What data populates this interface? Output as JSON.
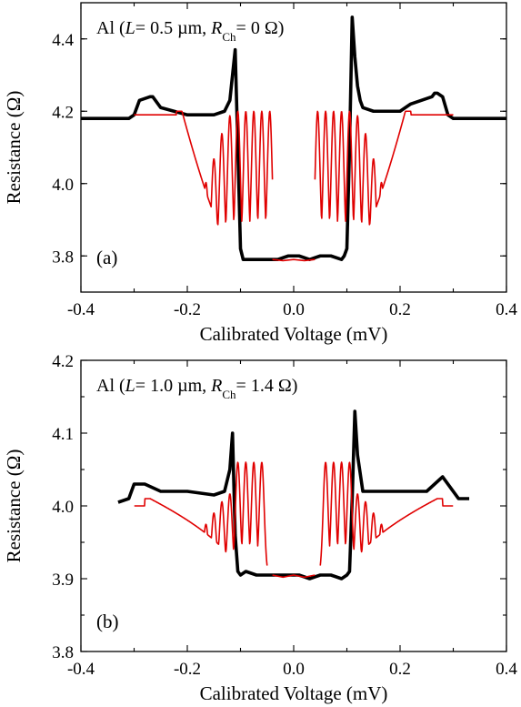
{
  "chart_data": [
    {
      "type": "line",
      "panel_label": "(a)",
      "title": {
        "material": "Al",
        "l_sym": "L",
        "l_text": "= 0.5 µm, ",
        "r_sym": "R",
        "r_sub": "Ch",
        "r_text": "= 0 Ω)"
      },
      "xlabel": "Calibrated Voltage (mV)",
      "ylabel": "Resistance (Ω)",
      "xlim": [
        -0.4,
        0.4
      ],
      "ylim": [
        3.7,
        4.5
      ],
      "xticks": [
        -0.4,
        -0.2,
        0.0,
        0.2,
        0.4
      ],
      "xtick_labels": [
        "-0.4",
        "-0.2",
        "0.0",
        "0.2",
        "0.4"
      ],
      "yticks": [
        3.8,
        4.0,
        4.2,
        4.4
      ],
      "ytick_labels": [
        "3.8",
        "4.0",
        "4.2",
        "4.4"
      ],
      "series": [
        {
          "color": "#000000",
          "x": [
            -0.4,
            -0.35,
            -0.31,
            -0.3,
            -0.29,
            -0.27,
            -0.265,
            -0.25,
            -0.2,
            -0.15,
            -0.13,
            -0.12,
            -0.115,
            -0.11,
            -0.105,
            -0.1,
            -0.095,
            -0.09,
            -0.07,
            -0.05,
            -0.03,
            -0.01,
            0.01,
            0.03,
            0.05,
            0.07,
            0.09,
            0.095,
            0.1,
            0.105,
            0.11,
            0.115,
            0.12,
            0.125,
            0.13,
            0.15,
            0.2,
            0.22,
            0.26,
            0.265,
            0.27,
            0.28,
            0.29,
            0.3,
            0.35,
            0.4
          ],
          "y": [
            4.18,
            4.18,
            4.18,
            4.19,
            4.23,
            4.24,
            4.24,
            4.21,
            4.19,
            4.19,
            4.2,
            4.23,
            4.3,
            4.37,
            4.1,
            3.82,
            3.79,
            3.79,
            3.79,
            3.79,
            3.79,
            3.8,
            3.8,
            3.79,
            3.8,
            3.8,
            3.79,
            3.8,
            3.82,
            4.1,
            4.46,
            4.35,
            4.27,
            4.23,
            4.21,
            4.2,
            4.2,
            4.22,
            4.24,
            4.25,
            4.25,
            4.24,
            4.19,
            4.18,
            4.18,
            4.18
          ]
        },
        {
          "color": "#e00000",
          "oscillation": {
            "amplitude": 0.41,
            "upper": 4.2,
            "baseline": 3.79,
            "peaks": [
              0.045,
              0.06,
              0.075,
              0.09,
              0.105,
              0.12,
              0.135,
              0.15,
              0.165,
              0.18,
              0.195,
              0.21
            ],
            "width": 0.0045,
            "amp_scale": [
              1.0,
              1.0,
              1.0,
              1.0,
              1.0,
              0.97,
              0.85,
              0.68,
              0.52,
              0.38,
              0.26,
              0.14
            ],
            "x_range": [
              0.04,
              0.3
            ],
            "zero_gap": [
              -0.04,
              0.04
            ],
            "zero_level": 3.79
          },
          "x": [],
          "y": []
        }
      ]
    },
    {
      "type": "line",
      "panel_label": "(b)",
      "title": {
        "material": "Al",
        "l_sym": "L",
        "l_text": "= 1.0 µm, ",
        "r_sym": "R",
        "r_sub": "Ch",
        "r_text": "= 1.4 Ω)"
      },
      "xlabel": "Calibrated Voltage (mV)",
      "ylabel": "Resistance (Ω)",
      "xlim": [
        -0.4,
        0.4
      ],
      "ylim": [
        3.8,
        4.2
      ],
      "xticks": [
        -0.4,
        -0.2,
        0.0,
        0.2,
        0.4
      ],
      "xtick_labels": [
        "-0.4",
        "-0.2",
        "0.0",
        "0.2",
        "0.4"
      ],
      "yticks": [
        3.8,
        3.9,
        4.0,
        4.1,
        4.2
      ],
      "ytick_labels": [
        "3.8",
        "3.9",
        "4.0",
        "4.1",
        "4.2"
      ],
      "series": [
        {
          "color": "#000000",
          "x": [
            -0.33,
            -0.31,
            -0.3,
            -0.28,
            -0.25,
            -0.2,
            -0.15,
            -0.13,
            -0.12,
            -0.115,
            -0.11,
            -0.105,
            -0.1,
            -0.09,
            -0.07,
            -0.05,
            -0.03,
            -0.01,
            0.01,
            0.03,
            0.05,
            0.07,
            0.09,
            0.1,
            0.105,
            0.11,
            0.115,
            0.12,
            0.13,
            0.15,
            0.2,
            0.25,
            0.28,
            0.3,
            0.31,
            0.33
          ],
          "y": [
            4.005,
            4.01,
            4.03,
            4.03,
            4.02,
            4.02,
            4.015,
            4.02,
            4.05,
            4.1,
            3.96,
            3.91,
            3.905,
            3.91,
            3.905,
            3.905,
            3.905,
            3.905,
            3.905,
            3.9,
            3.905,
            3.905,
            3.9,
            3.905,
            3.91,
            4.01,
            4.13,
            4.07,
            4.02,
            4.02,
            4.02,
            4.02,
            4.04,
            4.02,
            4.01,
            4.01
          ]
        },
        {
          "color": "#e00000",
          "oscillation": {
            "amplitude": 0.155,
            "upper": 4.06,
            "baseline": 3.905,
            "peaks": [
              0.06,
              0.075,
              0.09,
              0.105,
              0.12,
              0.135,
              0.15,
              0.165,
              0.18,
              0.195,
              0.21,
              0.225,
              0.24,
              0.255,
              0.27
            ],
            "width": 0.0045,
            "amp_scale": [
              1.0,
              1.0,
              1.0,
              1.0,
              0.72,
              0.65,
              0.55,
              0.45,
              0.4,
              0.33,
              0.27,
              0.22,
              0.18,
              0.13,
              0.09
            ],
            "x_range": [
              0.05,
              0.3
            ],
            "zero_gap": [
              -0.04,
              0.04
            ],
            "zero_level": 3.905,
            "upper_floor": 4.01
          },
          "x": [],
          "y": []
        }
      ]
    }
  ]
}
